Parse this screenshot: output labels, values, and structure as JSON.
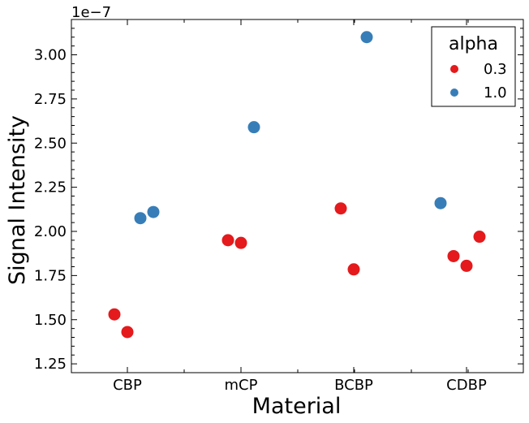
{
  "chart_data": {
    "type": "scatter",
    "categories": [
      "CBP",
      "mCP",
      "BCBP",
      "CDBP"
    ],
    "xlabel": "Material",
    "ylabel": "Signal Intensity",
    "y_offset_label": "1e−7",
    "ylim": [
      1.2,
      3.2
    ],
    "yticks": [
      1.25,
      1.5,
      1.75,
      2.0,
      2.25,
      2.5,
      2.75,
      3.0
    ],
    "ytick_labels": [
      "1.25",
      "1.50",
      "1.75",
      "2.00",
      "2.25",
      "2.50",
      "2.75",
      "3.00"
    ],
    "legend": {
      "title": "alpha",
      "position": "top-right"
    },
    "series": [
      {
        "name": "0.3",
        "color": "#e41a1c",
        "points": [
          {
            "category": "CBP",
            "y": 1.53
          },
          {
            "category": "CBP",
            "y": 1.43
          },
          {
            "category": "mCP",
            "y": 1.95
          },
          {
            "category": "mCP",
            "y": 1.935
          },
          {
            "category": "BCBP",
            "y": 2.13
          },
          {
            "category": "BCBP",
            "y": 1.785
          },
          {
            "category": "CDBP",
            "y": 1.86
          },
          {
            "category": "CDBP",
            "y": 1.805
          },
          {
            "category": "CDBP",
            "y": 1.97
          }
        ]
      },
      {
        "name": "1.0",
        "color": "#377eb8",
        "points": [
          {
            "category": "CBP",
            "y": 2.075
          },
          {
            "category": "CBP",
            "y": 2.11
          },
          {
            "category": "mCP",
            "y": 2.59
          },
          {
            "category": "BCBP",
            "y": 3.1
          },
          {
            "category": "CDBP",
            "y": 2.16
          }
        ]
      }
    ]
  }
}
